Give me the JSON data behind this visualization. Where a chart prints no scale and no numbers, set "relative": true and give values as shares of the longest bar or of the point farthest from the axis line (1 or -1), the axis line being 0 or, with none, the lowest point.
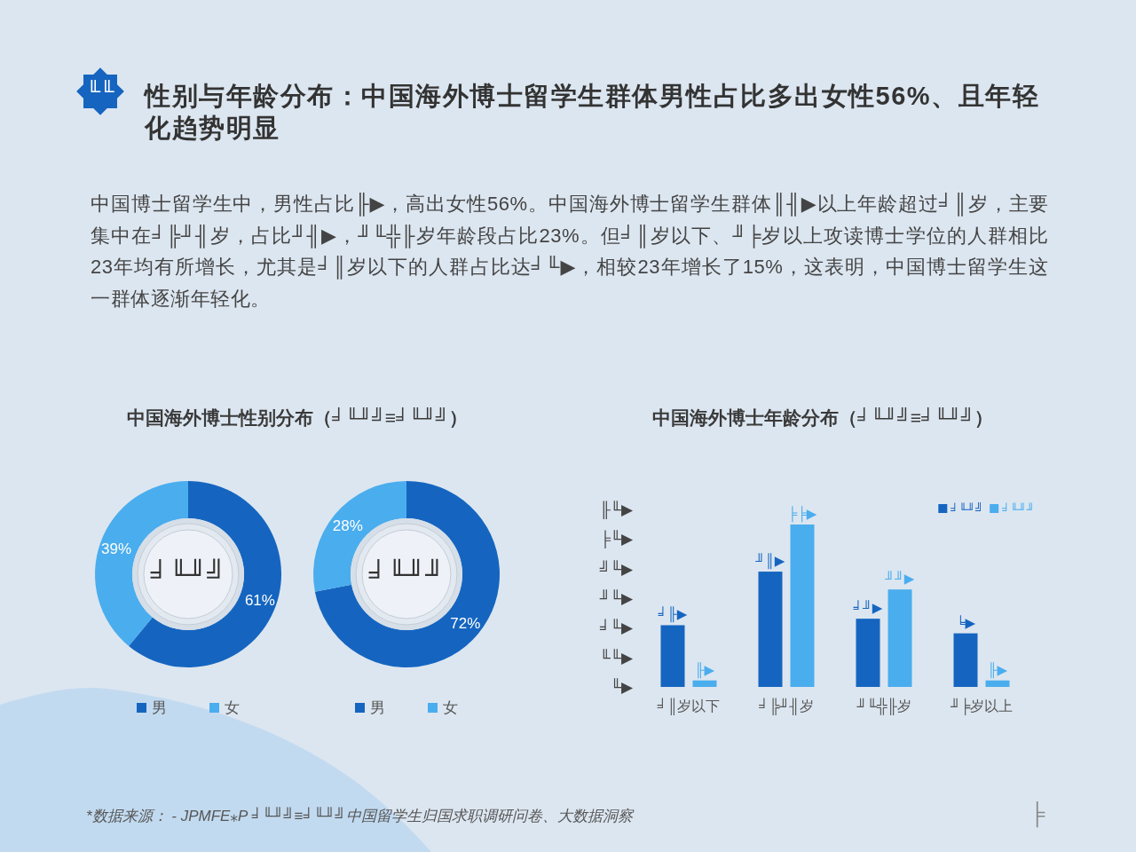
{
  "chart_data": [
    {
      "type": "other",
      "title": "性别与年龄分布：中国海外博士留学生群体男性占比多出女性56%、且年轻化趋势明显",
      "annotations": [
        "╙╙",
        "中国博士留学生中，男性占比╟▶，高出女性56%。中国海外博士留学生群体║╢▶以上年龄超过╛║岁，主要集中在╛╠╜╢岁，占比╜╢▶，╜╙╬╟岁年龄段占比23%。但╛║岁以下、╜╞岁以上攻读博士学位的人群相比23年均有所增长，尤其是╛║岁以下的人群占比达╛╙▶，相较23年增长了15%，这表明，中国博士留学生这一群体逐渐年轻化。",
        "*数据来源： - JPMFE⁎P ╛╙╜╝≡╛╙╜╝中国留学生归国求职调研问卷、大数据洞察",
        "╞"
      ]
    },
    {
      "type": "donut",
      "title": "中国海外博士性别分布（╛╙╜╝≡╛╙╜╝）",
      "categories": [
        "男",
        "女"
      ],
      "values": [
        61,
        39
      ],
      "value_labels": [
        "61%",
        "39%"
      ],
      "colors": [
        "#1565c0",
        "#4aadee"
      ],
      "legend": "bottom",
      "annotations": [
        "╛╙╜╝"
      ]
    },
    {
      "type": "donut",
      "categories": [
        "男",
        "女"
      ],
      "values": [
        72,
        28
      ],
      "value_labels": [
        "72%",
        "28%"
      ],
      "colors": [
        "#1565c0",
        "#4aadee"
      ],
      "legend": "bottom",
      "annotations": [
        "╛╙╜╜"
      ]
    },
    {
      "type": "bar",
      "title": "中国海外博士年龄分布（╛╙╜╝≡╛╙╜╝）",
      "categories": [
        "╛║岁以下",
        "╛╠╜╢岁",
        "╜╙╬╟岁",
        "╜╞岁以上"
      ],
      "relative": true,
      "series": [
        {
          "name": "╛╙╜╝",
          "color": "#1565c0",
          "values": [
            0.38,
            0.71,
            0.42,
            0.33
          ]
        },
        {
          "name": "╛╙╜╜",
          "color": "#4aadee",
          "values": [
            0.04,
            1,
            0.6,
            0.04
          ]
        }
      ],
      "annotations": [
        "╟╙▶",
        "╞╙▶",
        "╝╙▶",
        "╜╙▶",
        "╛╙▶",
        "╙╙▶",
        "╙▶",
        {
          "text": "╛╟▶",
          "x": "╛║岁以下",
          "y": 0.38
        },
        {
          "text": "╜║▶",
          "x": "╛╠╜╢岁",
          "y": 0.71
        },
        {
          "text": "╛╜▶",
          "x": "╜╙╬╟岁",
          "y": 0.42
        },
        {
          "text": "╘▶",
          "x": "╜╞岁以上",
          "y": 0.33
        },
        {
          "text": "╟▶",
          "x": "╛║岁以下",
          "y": 0.04
        },
        {
          "text": "╞╞▶",
          "x": "╛╠╜╢岁",
          "y": 1
        },
        {
          "text": "╜╜▶",
          "x": "╜╙╬╟岁",
          "y": 0.6
        },
        {
          "text": "╟▶",
          "x": "╜╞岁以上",
          "y": 0.04
        }
      ],
      "legend": "top right"
    }
  ]
}
